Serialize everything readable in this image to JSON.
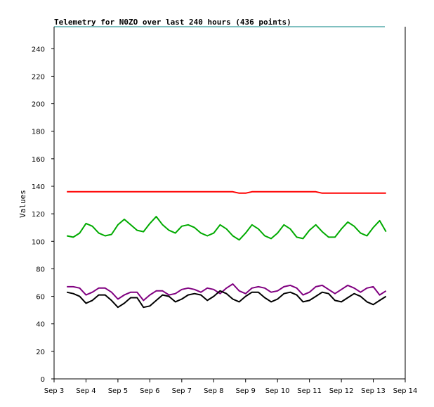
{
  "chart_data": {
    "type": "line",
    "title": "Telemetry for N0ZO over last 240 hours (436 points)",
    "xlabel": "",
    "ylabel": "Values",
    "ylim": [
      0,
      256
    ],
    "yticks": [
      0,
      20,
      40,
      60,
      80,
      100,
      120,
      140,
      160,
      180,
      200,
      220,
      240
    ],
    "xlim": [
      3.0,
      14.0
    ],
    "categories": [
      "Sep 3",
      "Sep 4",
      "Sep 5",
      "Sep 6",
      "Sep 7",
      "Sep 8",
      "Sep 9",
      "Sep 10",
      "Sep 11",
      "Sep 12",
      "Sep 13",
      "Sep 14"
    ],
    "x": [
      3.4,
      3.6,
      3.8,
      4.0,
      4.2,
      4.4,
      4.6,
      4.8,
      5.0,
      5.2,
      5.4,
      5.6,
      5.8,
      6.0,
      6.2,
      6.4,
      6.6,
      6.8,
      7.0,
      7.2,
      7.4,
      7.6,
      7.8,
      8.0,
      8.2,
      8.4,
      8.6,
      8.8,
      9.0,
      9.2,
      9.4,
      9.6,
      9.8,
      10.0,
      10.2,
      10.4,
      10.6,
      10.8,
      11.0,
      11.2,
      11.4,
      11.6,
      11.8,
      12.0,
      12.2,
      12.4,
      12.6,
      12.8,
      13.0,
      13.2,
      13.4
    ],
    "series": [
      {
        "color": "#ff0000",
        "values": [
          136,
          136,
          136,
          136,
          136,
          136,
          136,
          136,
          136,
          136,
          136,
          136,
          136,
          136,
          136,
          136,
          136,
          136,
          136,
          136,
          136,
          136,
          136,
          136,
          136,
          136,
          136,
          135,
          135,
          136,
          136,
          136,
          136,
          136,
          136,
          136,
          136,
          136,
          136,
          136,
          135,
          135,
          135,
          135,
          135,
          135,
          135,
          135,
          135,
          135,
          135
        ]
      },
      {
        "color": "#00aa00",
        "values": [
          104,
          103,
          106,
          113,
          111,
          106,
          104,
          105,
          112,
          116,
          112,
          108,
          107,
          113,
          118,
          112,
          108,
          106,
          111,
          112,
          110,
          106,
          104,
          106,
          112,
          109,
          104,
          101,
          106,
          112,
          109,
          104,
          102,
          106,
          112,
          109,
          103,
          102,
          108,
          112,
          107,
          103,
          103,
          109,
          114,
          111,
          106,
          104,
          110,
          115,
          107
        ]
      },
      {
        "color": "#800080",
        "values": [
          67,
          67,
          66,
          61,
          63,
          66,
          66,
          63,
          58,
          61,
          63,
          63,
          57,
          61,
          64,
          64,
          61,
          62,
          65,
          66,
          65,
          63,
          66,
          65,
          62,
          66,
          69,
          64,
          62,
          66,
          67,
          66,
          63,
          64,
          67,
          68,
          66,
          61,
          63,
          67,
          68,
          65,
          62,
          65,
          68,
          66,
          63,
          66,
          67,
          61,
          64
        ]
      },
      {
        "color": "#000000",
        "values": [
          63,
          62,
          60,
          55,
          57,
          61,
          61,
          57,
          52,
          55,
          59,
          59,
          52,
          53,
          57,
          61,
          60,
          56,
          58,
          61,
          62,
          61,
          57,
          60,
          64,
          62,
          58,
          56,
          60,
          63,
          63,
          59,
          56,
          58,
          62,
          63,
          61,
          56,
          57,
          60,
          63,
          62,
          57,
          56,
          59,
          62,
          60,
          56,
          54,
          57,
          60
        ]
      }
    ],
    "grid": false,
    "legend": "none"
  }
}
